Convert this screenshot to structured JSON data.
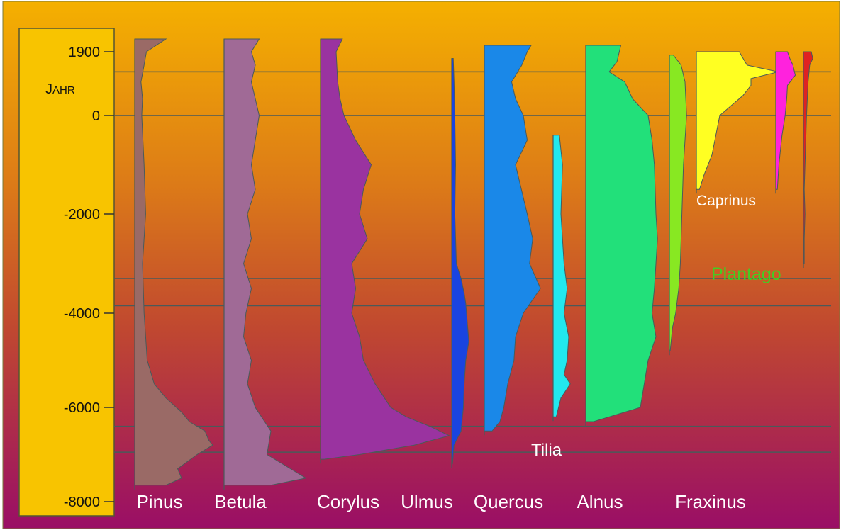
{
  "chart_data": {
    "type": "area",
    "title": "",
    "subtitle": "",
    "ylabel": "Jahr",
    "xlabel": "",
    "y_ticks": [
      "1900",
      "0",
      "-2000",
      "-4000",
      "-6000",
      "-8000"
    ],
    "ylim": [
      -8000,
      2100
    ],
    "grid": false,
    "legend": "none",
    "reference_lines_years": [
      1300,
      0,
      -3300,
      -3850,
      -6400,
      -6950
    ],
    "series": [
      {
        "name": "Pinus",
        "color": "#9a6a66",
        "profile": [
          [
            2100,
            40
          ],
          [
            1900,
            15
          ],
          [
            1500,
            12
          ],
          [
            1000,
            8
          ],
          [
            500,
            10
          ],
          [
            0,
            9
          ],
          [
            -1000,
            12
          ],
          [
            -2000,
            14
          ],
          [
            -3000,
            10
          ],
          [
            -4000,
            12
          ],
          [
            -5000,
            16
          ],
          [
            -5500,
            25
          ],
          [
            -5800,
            40
          ],
          [
            -6100,
            60
          ],
          [
            -6300,
            70
          ],
          [
            -6500,
            90
          ],
          [
            -6700,
            95
          ],
          [
            -6800,
            100
          ],
          [
            -7000,
            80
          ],
          [
            -7300,
            55
          ],
          [
            -7500,
            60
          ],
          [
            -7650,
            40
          ]
        ]
      },
      {
        "name": "Betula",
        "color": "#a06a96",
        "profile": [
          [
            2100,
            45
          ],
          [
            1900,
            35
          ],
          [
            1500,
            40
          ],
          [
            1000,
            35
          ],
          [
            0,
            45
          ],
          [
            -500,
            40
          ],
          [
            -1000,
            35
          ],
          [
            -1500,
            40
          ],
          [
            -2000,
            30
          ],
          [
            -2500,
            35
          ],
          [
            -3000,
            25
          ],
          [
            -3500,
            35
          ],
          [
            -4000,
            28
          ],
          [
            -4500,
            25
          ],
          [
            -5000,
            35
          ],
          [
            -5500,
            30
          ],
          [
            -6000,
            40
          ],
          [
            -6500,
            60
          ],
          [
            -7000,
            55
          ],
          [
            -7300,
            85
          ],
          [
            -7500,
            105
          ],
          [
            -7650,
            60
          ]
        ]
      },
      {
        "name": "Corylus",
        "color": "#9a33a0",
        "profile": [
          [
            2100,
            28
          ],
          [
            1900,
            20
          ],
          [
            1000,
            22
          ],
          [
            500,
            25
          ],
          [
            0,
            30
          ],
          [
            -500,
            45
          ],
          [
            -1000,
            65
          ],
          [
            -1500,
            55
          ],
          [
            -2000,
            50
          ],
          [
            -2500,
            60
          ],
          [
            -3000,
            40
          ],
          [
            -3500,
            45
          ],
          [
            -4000,
            40
          ],
          [
            -4500,
            50
          ],
          [
            -5000,
            55
          ],
          [
            -5500,
            70
          ],
          [
            -6000,
            90
          ],
          [
            -6200,
            110
          ],
          [
            -6400,
            140
          ],
          [
            -6600,
            165
          ],
          [
            -6800,
            120
          ],
          [
            -7000,
            50
          ],
          [
            -7100,
            5
          ]
        ]
      },
      {
        "name": "Ulmus",
        "color": "#1a44e0",
        "profile": [
          [
            1700,
            2
          ],
          [
            1000,
            3
          ],
          [
            0,
            4
          ],
          [
            -1000,
            5
          ],
          [
            -2000,
            4
          ],
          [
            -3000,
            6
          ],
          [
            -3300,
            12
          ],
          [
            -3600,
            16
          ],
          [
            -3800,
            18
          ],
          [
            -4200,
            20
          ],
          [
            -4600,
            22
          ],
          [
            -5000,
            18
          ],
          [
            -5500,
            16
          ],
          [
            -6000,
            15
          ],
          [
            -6500,
            12
          ],
          [
            -6800,
            3
          ],
          [
            -7200,
            1
          ]
        ]
      },
      {
        "name": "Quercus",
        "color": "#1a88e8",
        "profile": [
          [
            2000,
            60
          ],
          [
            1900,
            55
          ],
          [
            1500,
            48
          ],
          [
            1000,
            35
          ],
          [
            500,
            40
          ],
          [
            0,
            50
          ],
          [
            -500,
            55
          ],
          [
            -1000,
            40
          ],
          [
            -2000,
            55
          ],
          [
            -2500,
            62
          ],
          [
            -3000,
            58
          ],
          [
            -3500,
            72
          ],
          [
            -4000,
            50
          ],
          [
            -4500,
            40
          ],
          [
            -5000,
            38
          ],
          [
            -5500,
            30
          ],
          [
            -6000,
            25
          ],
          [
            -6300,
            20
          ],
          [
            -6500,
            10
          ]
        ]
      },
      {
        "name": "Tilia",
        "color": "#22e8ee",
        "profile": [
          [
            -400,
            8
          ],
          [
            -1000,
            12
          ],
          [
            -2000,
            10
          ],
          [
            -2500,
            12
          ],
          [
            -3000,
            14
          ],
          [
            -3500,
            18
          ],
          [
            -4000,
            14
          ],
          [
            -4500,
            20
          ],
          [
            -5000,
            18
          ],
          [
            -5300,
            14
          ],
          [
            -5500,
            22
          ],
          [
            -5800,
            10
          ],
          [
            -6200,
            4
          ]
        ]
      },
      {
        "name": "Alnus",
        "color": "#22e07a",
        "profile": [
          [
            2000,
            45
          ],
          [
            1600,
            40
          ],
          [
            1300,
            30
          ],
          [
            1000,
            50
          ],
          [
            500,
            60
          ],
          [
            0,
            80
          ],
          [
            -500,
            85
          ],
          [
            -1000,
            88
          ],
          [
            -2000,
            90
          ],
          [
            -2500,
            92
          ],
          [
            -3000,
            90
          ],
          [
            -3500,
            88
          ],
          [
            -4000,
            85
          ],
          [
            -4500,
            90
          ],
          [
            -5000,
            80
          ],
          [
            -5500,
            75
          ],
          [
            -6000,
            70
          ],
          [
            -6200,
            30
          ],
          [
            -6300,
            10
          ]
        ]
      },
      {
        "name": "Fraxinus",
        "color": "#88e822",
        "profile": [
          [
            1800,
            5
          ],
          [
            1500,
            15
          ],
          [
            1000,
            20
          ],
          [
            0,
            22
          ],
          [
            -1000,
            18
          ],
          [
            -2000,
            16
          ],
          [
            -3000,
            14
          ],
          [
            -3500,
            12
          ],
          [
            -4000,
            8
          ],
          [
            -4300,
            4
          ],
          [
            -4800,
            1
          ]
        ]
      },
      {
        "name": "Caprinus",
        "color": "#ffff22",
        "profile": [
          [
            1900,
            55
          ],
          [
            1700,
            60
          ],
          [
            1500,
            65
          ],
          [
            1300,
            105
          ],
          [
            1100,
            70
          ],
          [
            900,
            70
          ],
          [
            600,
            60
          ],
          [
            200,
            40
          ],
          [
            0,
            30
          ],
          [
            -400,
            25
          ],
          [
            -800,
            20
          ],
          [
            -1200,
            10
          ],
          [
            -1500,
            4
          ]
        ]
      },
      {
        "name": "",
        "color": "#ff22dd",
        "profile": [
          [
            1900,
            15
          ],
          [
            1700,
            18
          ],
          [
            1500,
            22
          ],
          [
            1200,
            25
          ],
          [
            900,
            15
          ],
          [
            500,
            14
          ],
          [
            0,
            12
          ],
          [
            -400,
            8
          ],
          [
            -1000,
            4
          ],
          [
            -1500,
            2
          ]
        ]
      },
      {
        "name": "",
        "color": "#e02222",
        "profile": [
          [
            1900,
            10
          ],
          [
            1700,
            12
          ],
          [
            1500,
            8
          ],
          [
            1000,
            6
          ],
          [
            500,
            5
          ],
          [
            0,
            4
          ],
          [
            -500,
            3
          ],
          [
            -1000,
            2
          ],
          [
            -1500,
            1
          ],
          [
            -2000,
            2
          ],
          [
            -2500,
            1
          ],
          [
            -3000,
            1
          ]
        ]
      }
    ],
    "annotations": [
      {
        "text": "Plantago",
        "color": "#44cc22"
      },
      {
        "text": "Tilia",
        "color": "#ffffff"
      }
    ]
  }
}
